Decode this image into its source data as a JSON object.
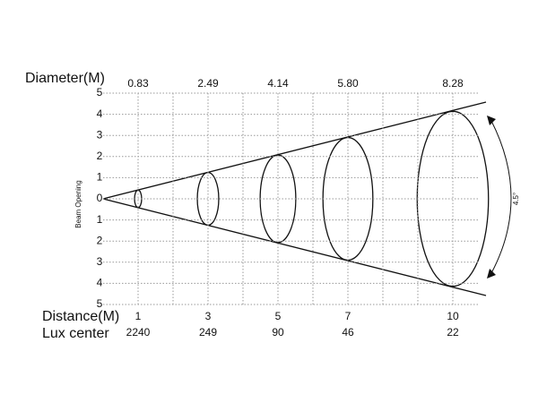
{
  "diameter": {
    "label": "Diameter(M)",
    "values": [
      "0.83",
      "2.49",
      "4.14",
      "5.80",
      "8.28"
    ]
  },
  "beam_opening": {
    "label": "Beam Opening",
    "ticks": [
      5,
      4,
      3,
      2,
      1,
      0,
      1,
      2,
      3,
      4,
      5
    ]
  },
  "angle": "4.5°",
  "distance": {
    "label": "Distance(M)",
    "values": [
      1,
      3,
      5,
      7,
      10
    ]
  },
  "lux_center": {
    "label": "Lux center",
    "values": [
      2240,
      249,
      90,
      46,
      22
    ]
  }
}
